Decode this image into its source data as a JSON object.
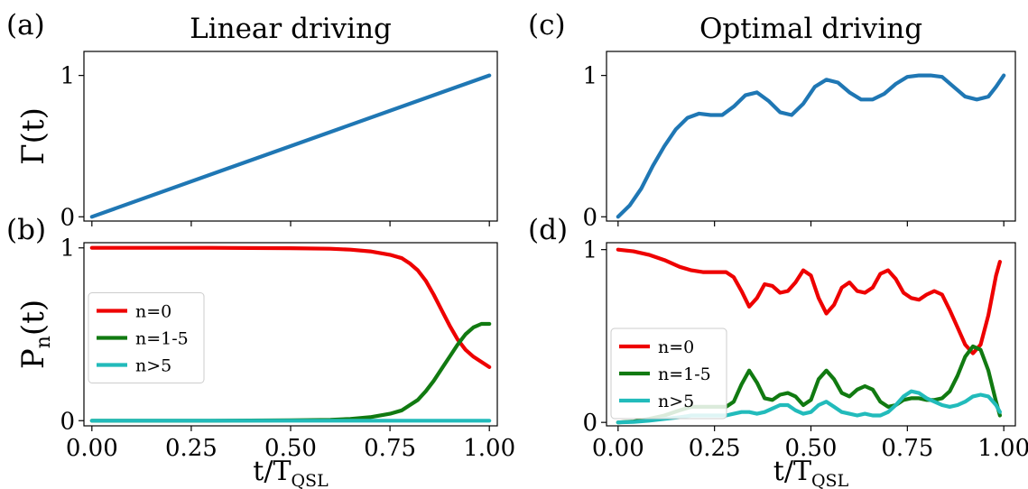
{
  "chart_data": [
    {
      "panel": "(a)",
      "type": "line",
      "title": "Linear driving",
      "ylabel": "Γ(t)",
      "xlim": [
        -0.02,
        1.02
      ],
      "ylim": [
        -0.03,
        1.17
      ],
      "yticks": [
        0,
        1
      ],
      "xticks": [
        0.0,
        0.25,
        0.5,
        0.75,
        1.0
      ],
      "xticklabels": [],
      "series": [
        {
          "color": "#1f77b4",
          "x": [
            0.0,
            1.0
          ],
          "y": [
            0.0,
            1.0
          ]
        }
      ]
    },
    {
      "panel": "(b)",
      "type": "line",
      "ylabel": "P",
      "ylabel_sub": "n",
      "ylabel_tail": "(t)",
      "xlabel": "t/T",
      "xlabel_sub": "QSL",
      "xlim": [
        -0.02,
        1.02
      ],
      "ylim": [
        -0.03,
        1.03
      ],
      "yticks": [
        0,
        1
      ],
      "xticks": [
        0.0,
        0.25,
        0.5,
        0.75,
        1.0
      ],
      "xticklabels": [
        "0.00",
        "0.25",
        "0.50",
        "0.75",
        "1.00"
      ],
      "legend": "center-left",
      "series": [
        {
          "name": "n=0",
          "color": "#ee0000",
          "x": [
            0.0,
            0.3,
            0.5,
            0.6,
            0.65,
            0.7,
            0.75,
            0.78,
            0.8,
            0.82,
            0.84,
            0.86,
            0.88,
            0.9,
            0.92,
            0.94,
            0.96,
            0.98,
            1.0
          ],
          "y": [
            1.0,
            1.0,
            0.998,
            0.995,
            0.99,
            0.98,
            0.96,
            0.94,
            0.91,
            0.87,
            0.81,
            0.73,
            0.64,
            0.55,
            0.47,
            0.41,
            0.37,
            0.34,
            0.31
          ]
        },
        {
          "name": "n=1-5",
          "color": "#117a11",
          "x": [
            0.0,
            0.3,
            0.5,
            0.6,
            0.65,
            0.7,
            0.75,
            0.78,
            0.8,
            0.82,
            0.84,
            0.86,
            0.88,
            0.9,
            0.92,
            0.94,
            0.96,
            0.98,
            1.0
          ],
          "y": [
            0.0,
            0.0,
            0.002,
            0.005,
            0.01,
            0.02,
            0.04,
            0.06,
            0.09,
            0.12,
            0.17,
            0.23,
            0.3,
            0.37,
            0.44,
            0.5,
            0.54,
            0.56,
            0.56
          ]
        },
        {
          "name": "n>5",
          "color": "#22bbbb",
          "x": [
            0.0,
            1.0
          ],
          "y": [
            0.0,
            0.0
          ]
        }
      ]
    },
    {
      "panel": "(c)",
      "type": "line",
      "title": "Optimal driving",
      "xlim": [
        -0.03,
        1.03
      ],
      "ylim": [
        -0.03,
        1.17
      ],
      "yticks": [
        0,
        1
      ],
      "xticks": [
        0.0,
        0.25,
        0.5,
        0.75,
        1.0
      ],
      "xticklabels": [],
      "series": [
        {
          "color": "#1f77b4",
          "x": [
            0.0,
            0.03,
            0.06,
            0.09,
            0.12,
            0.15,
            0.18,
            0.21,
            0.24,
            0.27,
            0.3,
            0.33,
            0.36,
            0.39,
            0.42,
            0.45,
            0.48,
            0.51,
            0.54,
            0.57,
            0.6,
            0.63,
            0.66,
            0.69,
            0.72,
            0.75,
            0.78,
            0.81,
            0.84,
            0.87,
            0.9,
            0.93,
            0.96,
            0.98,
            1.0
          ],
          "y": [
            0.0,
            0.08,
            0.2,
            0.36,
            0.5,
            0.62,
            0.7,
            0.73,
            0.72,
            0.72,
            0.78,
            0.86,
            0.88,
            0.82,
            0.74,
            0.72,
            0.8,
            0.92,
            0.97,
            0.95,
            0.88,
            0.83,
            0.83,
            0.87,
            0.94,
            0.99,
            1.0,
            1.0,
            0.99,
            0.92,
            0.85,
            0.83,
            0.85,
            0.92,
            1.0
          ]
        }
      ]
    },
    {
      "panel": "(d)",
      "type": "line",
      "xlabel": "t/T",
      "xlabel_sub": "QSL",
      "xlim": [
        -0.03,
        1.03
      ],
      "ylim": [
        -0.02,
        1.04
      ],
      "yticks": [
        0,
        1
      ],
      "xticks": [
        0.0,
        0.25,
        0.5,
        0.75,
        1.0
      ],
      "xticklabels": [
        "0.00",
        "0.25",
        "0.50",
        "0.75",
        "1.00"
      ],
      "legend": "lower-left",
      "series": [
        {
          "name": "n=0",
          "color": "#ee0000",
          "x": [
            0.0,
            0.04,
            0.08,
            0.12,
            0.16,
            0.19,
            0.22,
            0.25,
            0.28,
            0.3,
            0.32,
            0.34,
            0.36,
            0.38,
            0.4,
            0.42,
            0.44,
            0.46,
            0.48,
            0.5,
            0.52,
            0.54,
            0.56,
            0.58,
            0.6,
            0.62,
            0.64,
            0.66,
            0.68,
            0.7,
            0.72,
            0.74,
            0.76,
            0.78,
            0.8,
            0.82,
            0.84,
            0.86,
            0.88,
            0.9,
            0.92,
            0.94,
            0.96,
            0.98,
            0.99
          ],
          "y": [
            1.0,
            0.99,
            0.97,
            0.94,
            0.9,
            0.88,
            0.87,
            0.87,
            0.87,
            0.84,
            0.76,
            0.67,
            0.72,
            0.8,
            0.79,
            0.75,
            0.76,
            0.81,
            0.88,
            0.85,
            0.72,
            0.63,
            0.68,
            0.78,
            0.81,
            0.76,
            0.75,
            0.78,
            0.86,
            0.88,
            0.83,
            0.75,
            0.72,
            0.71,
            0.74,
            0.76,
            0.74,
            0.65,
            0.55,
            0.45,
            0.4,
            0.45,
            0.62,
            0.85,
            0.93
          ]
        },
        {
          "name": "n=1-5",
          "color": "#117a11",
          "x": [
            0.0,
            0.04,
            0.08,
            0.12,
            0.16,
            0.19,
            0.22,
            0.25,
            0.28,
            0.3,
            0.32,
            0.34,
            0.36,
            0.38,
            0.4,
            0.42,
            0.44,
            0.46,
            0.48,
            0.5,
            0.52,
            0.54,
            0.56,
            0.58,
            0.6,
            0.62,
            0.64,
            0.66,
            0.68,
            0.7,
            0.72,
            0.74,
            0.76,
            0.78,
            0.8,
            0.82,
            0.84,
            0.86,
            0.88,
            0.9,
            0.92,
            0.94,
            0.96,
            0.98,
            0.99
          ],
          "y": [
            0.0,
            0.005,
            0.02,
            0.04,
            0.07,
            0.09,
            0.09,
            0.09,
            0.09,
            0.12,
            0.22,
            0.3,
            0.23,
            0.14,
            0.13,
            0.16,
            0.17,
            0.15,
            0.1,
            0.13,
            0.25,
            0.3,
            0.25,
            0.17,
            0.15,
            0.19,
            0.21,
            0.19,
            0.12,
            0.09,
            0.1,
            0.13,
            0.14,
            0.14,
            0.13,
            0.13,
            0.14,
            0.18,
            0.27,
            0.38,
            0.44,
            0.42,
            0.3,
            0.12,
            0.04
          ]
        },
        {
          "name": "n>5",
          "color": "#22bbbb",
          "x": [
            0.0,
            0.04,
            0.08,
            0.12,
            0.16,
            0.19,
            0.22,
            0.25,
            0.28,
            0.3,
            0.32,
            0.34,
            0.36,
            0.38,
            0.4,
            0.42,
            0.44,
            0.46,
            0.48,
            0.5,
            0.52,
            0.54,
            0.56,
            0.58,
            0.6,
            0.62,
            0.64,
            0.66,
            0.68,
            0.7,
            0.72,
            0.74,
            0.76,
            0.78,
            0.8,
            0.82,
            0.84,
            0.86,
            0.88,
            0.9,
            0.92,
            0.94,
            0.96,
            0.98,
            0.99
          ],
          "y": [
            0.0,
            0.003,
            0.01,
            0.02,
            0.03,
            0.04,
            0.04,
            0.04,
            0.04,
            0.05,
            0.06,
            0.06,
            0.05,
            0.06,
            0.08,
            0.1,
            0.1,
            0.07,
            0.05,
            0.06,
            0.1,
            0.12,
            0.09,
            0.06,
            0.05,
            0.04,
            0.05,
            0.04,
            0.04,
            0.06,
            0.1,
            0.15,
            0.18,
            0.17,
            0.14,
            0.12,
            0.1,
            0.09,
            0.1,
            0.12,
            0.15,
            0.16,
            0.15,
            0.1,
            0.06
          ]
        }
      ]
    }
  ]
}
